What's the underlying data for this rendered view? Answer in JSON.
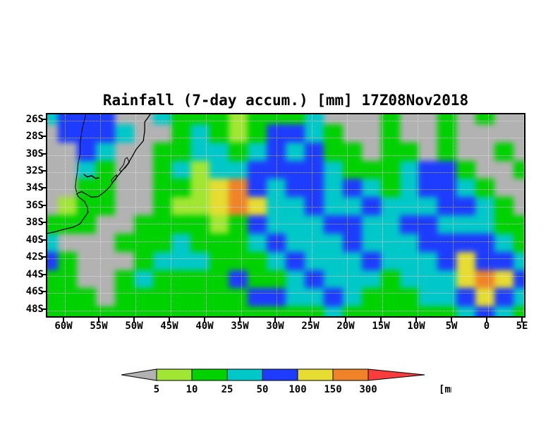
{
  "title": "Rainfall (7-day accum.) [mm] 17Z08Nov2018",
  "map": {
    "lat_tick_labels": [
      "26S",
      "28S",
      "30S",
      "32S",
      "34S",
      "36S",
      "38S",
      "40S",
      "42S",
      "44S",
      "46S",
      "48S"
    ],
    "lon_tick_labels": [
      "60W",
      "55W",
      "50W",
      "45W",
      "40W",
      "35W",
      "30W",
      "25W",
      "20W",
      "15W",
      "10W",
      "5W",
      "0",
      "5E"
    ]
  },
  "colorbar": {
    "tick_labels": [
      "5",
      "10",
      "25",
      "50",
      "100",
      "150",
      "300"
    ],
    "unit_label": "[mm]"
  },
  "chart_data": {
    "type": "heatmap",
    "title": "Rainfall (7-day accum.) [mm] 17Z08Nov2018",
    "units": "mm",
    "lon_range": [
      -60,
      5
    ],
    "lat_range": [
      -49,
      -25
    ],
    "levels_mm": [
      5,
      10,
      25,
      50,
      100,
      150,
      300
    ],
    "palette": [
      "#b2b2b2",
      "#a0e632",
      "#00d200",
      "#00c8c8",
      "#1e3cff",
      "#e6dc32",
      "#f08228",
      "#fa3c3c"
    ],
    "category_legend": [
      "<5",
      "5-10",
      "10-25",
      "25-50",
      "50-100",
      "100-150",
      "150-300",
      ">300"
    ],
    "grid_lon_start": -60,
    "grid_lon_step_deg": 2.5,
    "grid_lat_start": -25,
    "grid_lat_step_deg": 2,
    "grid": [
      [
        3,
        4,
        4,
        4,
        0,
        0,
        3,
        2,
        2,
        2,
        1,
        2,
        2,
        2,
        3,
        0,
        0,
        0,
        2,
        0,
        0,
        2,
        0,
        2,
        0,
        0
      ],
      [
        0,
        4,
        4,
        4,
        3,
        0,
        0,
        2,
        3,
        2,
        1,
        2,
        4,
        4,
        3,
        2,
        0,
        0,
        2,
        0,
        0,
        2,
        0,
        0,
        0,
        0
      ],
      [
        0,
        0,
        4,
        3,
        0,
        0,
        2,
        2,
        3,
        3,
        2,
        3,
        4,
        3,
        4,
        2,
        2,
        0,
        2,
        2,
        0,
        2,
        0,
        0,
        2,
        0
      ],
      [
        0,
        0,
        3,
        2,
        0,
        0,
        2,
        3,
        1,
        3,
        3,
        4,
        4,
        4,
        4,
        3,
        2,
        2,
        2,
        3,
        4,
        4,
        2,
        0,
        0,
        2
      ],
      [
        0,
        0,
        2,
        2,
        0,
        0,
        2,
        2,
        1,
        5,
        6,
        4,
        3,
        4,
        4,
        3,
        4,
        3,
        2,
        3,
        4,
        4,
        3,
        2,
        0,
        0
      ],
      [
        0,
        1,
        2,
        2,
        0,
        0,
        2,
        1,
        1,
        5,
        6,
        5,
        3,
        3,
        4,
        3,
        3,
        4,
        3,
        3,
        3,
        4,
        4,
        3,
        2,
        0
      ],
      [
        2,
        2,
        2,
        0,
        0,
        2,
        2,
        2,
        2,
        1,
        2,
        4,
        3,
        3,
        3,
        4,
        4,
        3,
        3,
        4,
        4,
        3,
        3,
        3,
        2,
        2
      ],
      [
        3,
        0,
        0,
        0,
        2,
        2,
        2,
        3,
        2,
        2,
        2,
        3,
        4,
        3,
        3,
        3,
        4,
        3,
        3,
        3,
        4,
        4,
        4,
        4,
        3,
        2
      ],
      [
        4,
        2,
        0,
        0,
        0,
        2,
        3,
        3,
        3,
        2,
        2,
        2,
        3,
        4,
        3,
        3,
        3,
        4,
        3,
        3,
        3,
        4,
        5,
        4,
        4,
        3
      ],
      [
        2,
        2,
        0,
        0,
        2,
        3,
        2,
        2,
        2,
        2,
        4,
        2,
        2,
        3,
        4,
        3,
        3,
        3,
        2,
        3,
        3,
        3,
        5,
        6,
        5,
        4
      ],
      [
        2,
        2,
        2,
        0,
        2,
        2,
        2,
        2,
        2,
        2,
        2,
        4,
        4,
        3,
        3,
        4,
        3,
        2,
        2,
        2,
        3,
        3,
        4,
        5,
        4,
        3
      ],
      [
        2,
        2,
        2,
        2,
        2,
        2,
        2,
        2,
        2,
        2,
        2,
        2,
        2,
        2,
        2,
        3,
        2,
        2,
        2,
        2,
        2,
        2,
        3,
        4,
        3,
        2
      ]
    ]
  }
}
